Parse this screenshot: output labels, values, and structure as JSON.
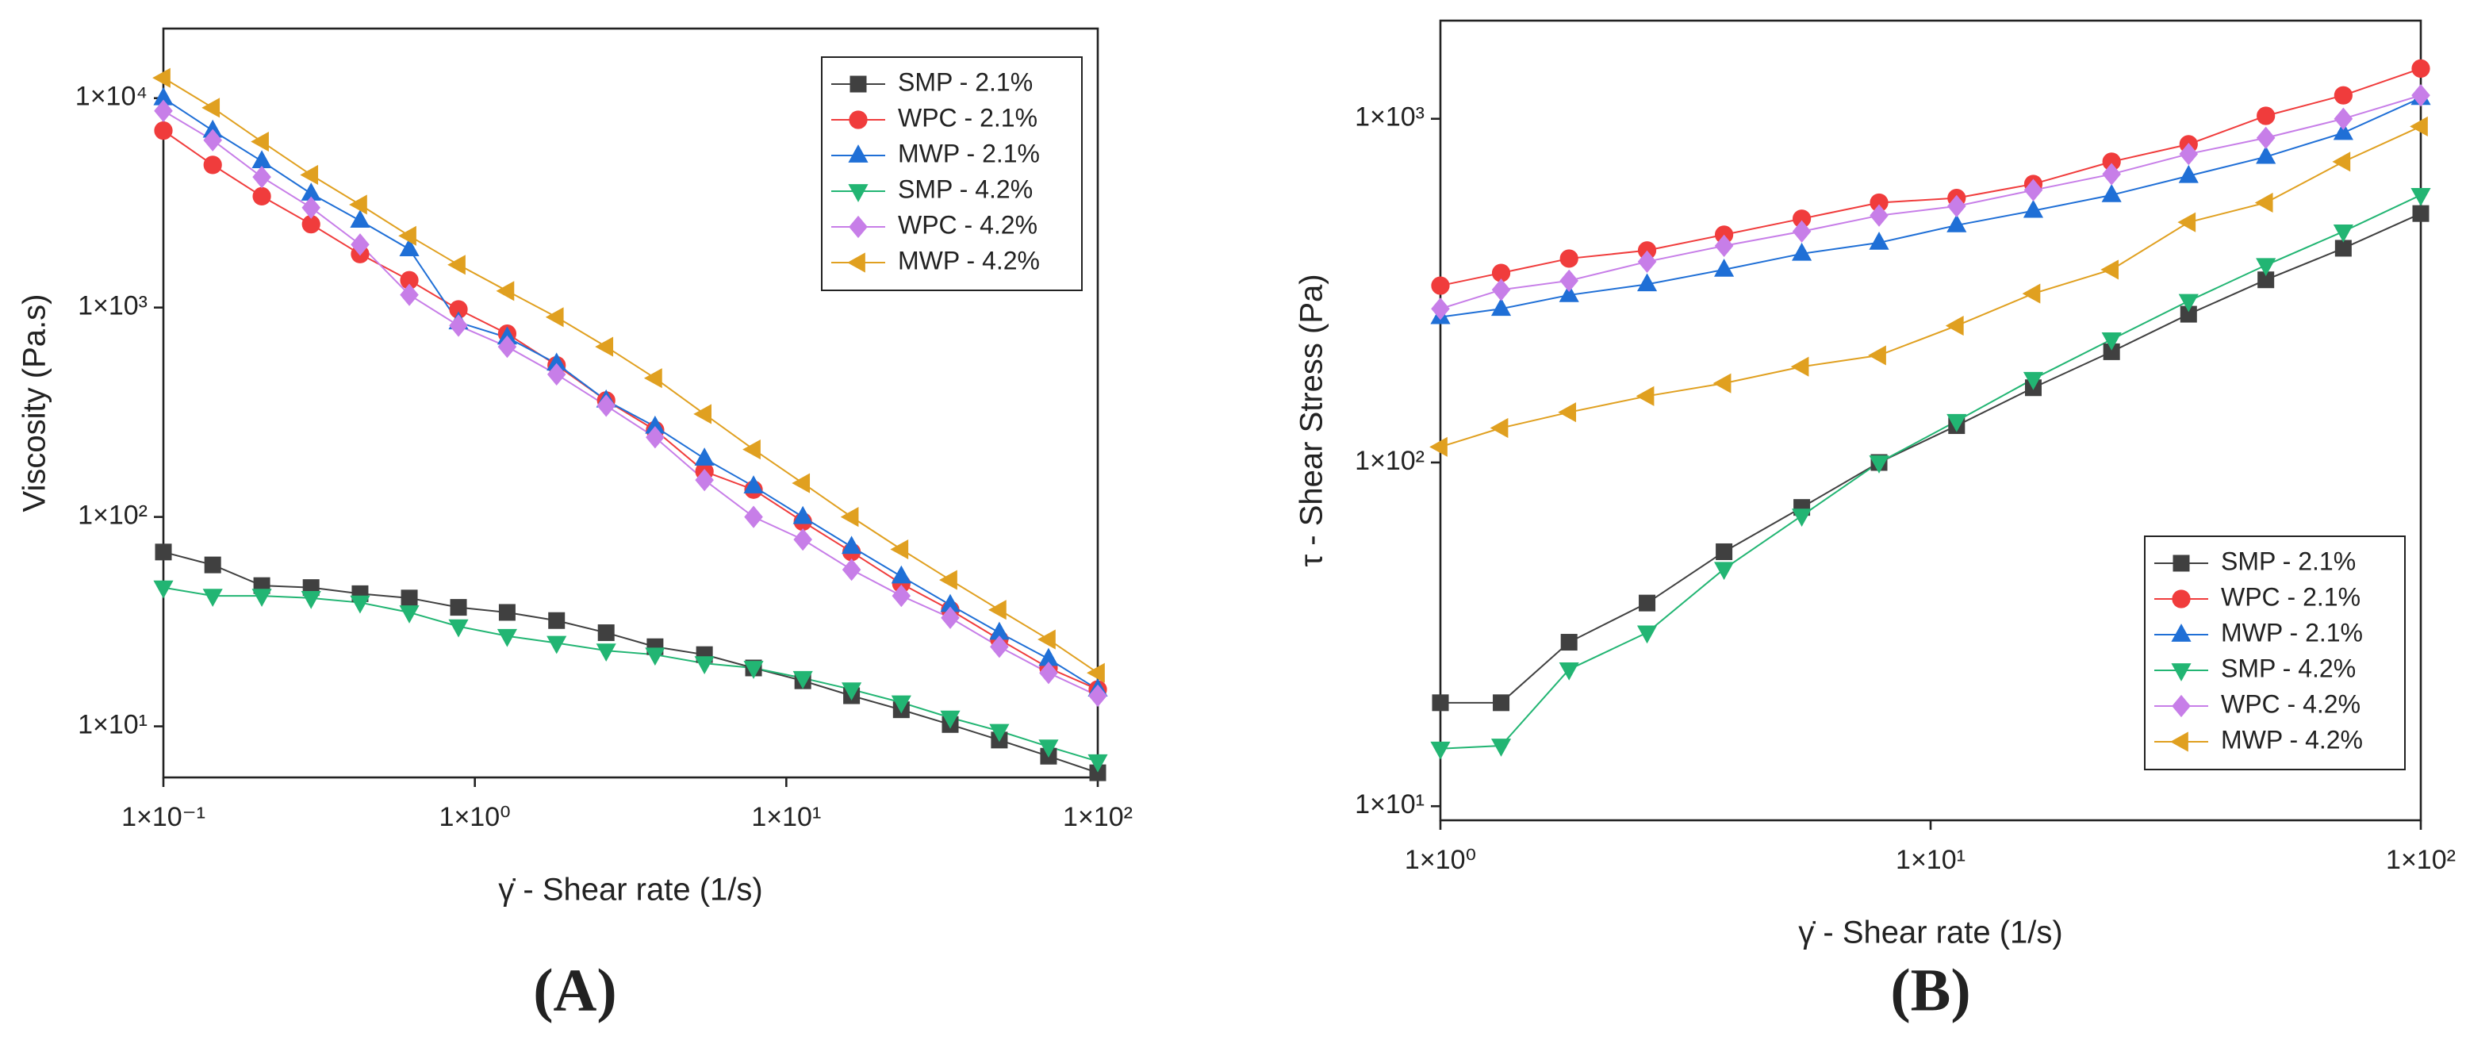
{
  "chart_data": [
    {
      "type": "line",
      "label": "(A)",
      "x_label": "γ̇ - Shear rate (1/s)",
      "y_label": "Viscosity (Pa.s)",
      "xscale": "log",
      "yscale": "log",
      "legend": "upper right",
      "xlim": [
        0.1,
        100
      ],
      "ylim": [
        5.7,
        21500
      ],
      "xticks": [
        {
          "value": 0.1,
          "label": "1×10⁻¹"
        },
        {
          "value": 1,
          "label": "1×10⁰"
        },
        {
          "value": 10,
          "label": "1×10¹"
        },
        {
          "value": 100,
          "label": "1×10²"
        }
      ],
      "yticks": [
        {
          "value": 10,
          "label": "1×10¹"
        },
        {
          "value": 100,
          "label": "1×10²"
        },
        {
          "value": 1000,
          "label": "1×10³"
        },
        {
          "value": 10000,
          "label": "1×10⁴"
        }
      ],
      "x": [
        0.1,
        0.144,
        0.207,
        0.298,
        0.428,
        0.616,
        0.886,
        1.27,
        1.83,
        2.64,
        3.79,
        5.46,
        7.85,
        11.3,
        16.2,
        23.4,
        33.6,
        48.3,
        69.5,
        100
      ],
      "series": [
        {
          "name": "SMP - 2.1%",
          "color": "#404040",
          "marker": "square",
          "values": [
            68,
            59,
            47,
            46,
            43,
            41,
            37,
            35,
            32,
            28,
            24,
            22,
            19,
            16.5,
            14,
            12,
            10.2,
            8.6,
            7.2,
            6
          ]
        },
        {
          "name": "WPC - 2.1%",
          "color": "#f03c3c",
          "marker": "circle",
          "values": [
            7000,
            4800,
            3400,
            2500,
            1800,
            1350,
            980,
            750,
            530,
            360,
            260,
            165,
            135,
            95,
            68,
            48,
            36,
            26,
            19,
            15
          ]
        },
        {
          "name": "MWP - 2.1%",
          "color": "#1f6fd6",
          "marker": "triangle-up",
          "values": [
            10000,
            7000,
            5000,
            3500,
            2600,
            1900,
            850,
            720,
            540,
            360,
            270,
            190,
            140,
            100,
            72,
            52,
            38,
            28,
            21,
            15
          ]
        },
        {
          "name": "SMP - 4.2%",
          "color": "#22b573",
          "marker": "triangle-down",
          "values": [
            46,
            42,
            42,
            41,
            39,
            35,
            30,
            27,
            25,
            23,
            22,
            20,
            19,
            17,
            15,
            13,
            11,
            9.5,
            8,
            6.8
          ]
        },
        {
          "name": "WPC - 4.2%",
          "color": "#c77ee8",
          "marker": "diamond",
          "values": [
            8700,
            6300,
            4200,
            3000,
            2000,
            1150,
            820,
            650,
            480,
            340,
            240,
            150,
            100,
            78,
            56,
            42,
            33,
            24,
            18,
            14
          ]
        },
        {
          "name": "MWP - 4.2%",
          "color": "#e0a020",
          "marker": "triangle-left",
          "values": [
            12500,
            9000,
            6200,
            4300,
            3100,
            2200,
            1600,
            1200,
            900,
            650,
            460,
            310,
            210,
            145,
            100,
            70,
            50,
            36,
            26,
            18
          ]
        }
      ]
    },
    {
      "type": "line",
      "label": "(B)",
      "x_label": "γ̇ - Shear rate (1/s)",
      "y_label": "τ - Shear Stress (Pa)",
      "xscale": "log",
      "yscale": "log",
      "legend": "lower right",
      "xlim": [
        1,
        100
      ],
      "ylim": [
        9.1,
        1930
      ],
      "xticks": [
        {
          "value": 1,
          "label": "1×10⁰"
        },
        {
          "value": 10,
          "label": "1×10¹"
        },
        {
          "value": 100,
          "label": "1×10²"
        }
      ],
      "yticks": [
        {
          "value": 10,
          "label": "1×10¹"
        },
        {
          "value": 100,
          "label": "1×10²"
        },
        {
          "value": 1000,
          "label": "1×10³"
        }
      ],
      "x": [
        1,
        1.33,
        1.83,
        2.64,
        3.79,
        5.46,
        7.85,
        11.3,
        16.2,
        23.4,
        33.6,
        48.3,
        69.5,
        100
      ],
      "series": [
        {
          "name": "SMP - 2.1%",
          "color": "#404040",
          "marker": "square",
          "values": [
            20,
            20,
            30,
            39,
            55,
            74,
            100,
            128,
            165,
            210,
            270,
            340,
            420,
            530
          ]
        },
        {
          "name": "WPC - 2.1%",
          "color": "#f03c3c",
          "marker": "circle",
          "values": [
            327,
            356,
            392,
            414,
            460,
            512,
            570,
            588,
            646,
            750,
            843,
            1020,
            1170,
            1400
          ]
        },
        {
          "name": "MWP - 2.1%",
          "color": "#1f6fd6",
          "marker": "triangle-up",
          "values": [
            265,
            280,
            307,
            330,
            364,
            405,
            436,
            490,
            540,
            600,
            682,
            775,
            910,
            1150
          ]
        },
        {
          "name": "SMP - 4.2%",
          "color": "#22b573",
          "marker": "triangle-down",
          "values": [
            14.7,
            15,
            25,
            32,
            49,
            70,
            100,
            132,
            175,
            228,
            295,
            375,
            470,
            600
          ]
        },
        {
          "name": "WPC - 4.2%",
          "color": "#c77ee8",
          "marker": "diamond",
          "values": [
            280,
            318,
            338,
            384,
            427,
            470,
            523,
            557,
            620,
            690,
            790,
            880,
            1000,
            1170
          ]
        },
        {
          "name": "MWP - 4.2%",
          "color": "#e0a020",
          "marker": "triangle-left",
          "values": [
            111,
            126,
            140,
            156,
            170,
            190,
            205,
            250,
            310,
            364,
            500,
            570,
            750,
            950
          ]
        }
      ]
    }
  ]
}
